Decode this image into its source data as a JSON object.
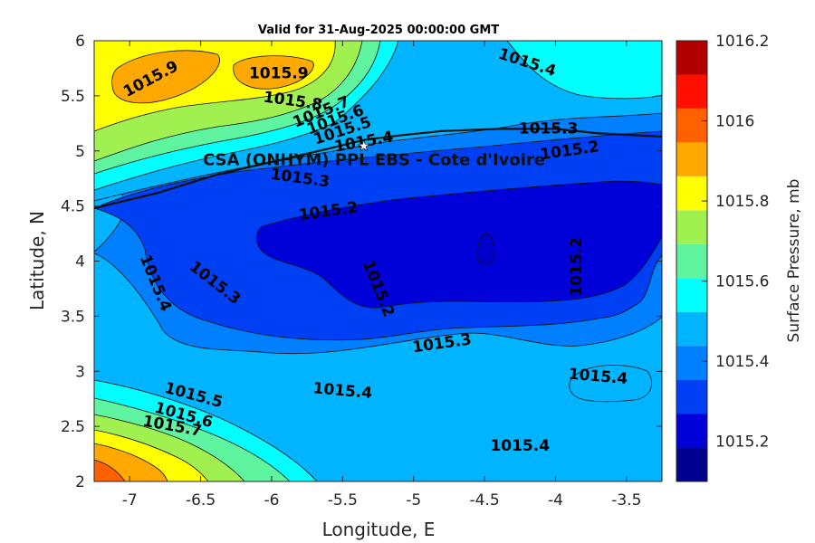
{
  "title": "Valid for 31-Aug-2025 00:00:00 GMT",
  "xlabel": "Longitude, E",
  "ylabel": "Latitude, N",
  "site_label": "CSA (ONHYM) PPL EBS  - Cote d'Ivoire",
  "colorbar": {
    "label": "Surface Pressure, mb",
    "min": 1015.1,
    "max": 1016.2,
    "step": 0.1,
    "tick_labels": [
      "1016.2",
      "1016",
      "1015.8",
      "1015.6",
      "1015.4",
      "1015.2"
    ],
    "colors": [
      "#00008f",
      "#0000d9",
      "#0040f5",
      "#0080ff",
      "#00b4ff",
      "#00ffff",
      "#5ff5a0",
      "#a0f050",
      "#ffff00",
      "#ffa800",
      "#ff6000",
      "#ff1000",
      "#b00000"
    ]
  },
  "chart_data": {
    "type": "contour",
    "x_ticks": [
      "-7",
      "-6.5",
      "-6",
      "-5.5",
      "-5",
      "-4.5",
      "-4",
      "-3.5"
    ],
    "y_ticks": [
      "6",
      "5.5",
      "5",
      "4.5",
      "4",
      "3.5",
      "3",
      "2.5",
      "2"
    ],
    "xlim": [
      -7.25,
      -3.25
    ],
    "ylim": [
      2,
      6
    ],
    "contour_labels": [
      {
        "text": "1015.9",
        "lon": -6.85,
        "lat": 5.65
      },
      {
        "text": "1015.9",
        "lon": -5.95,
        "lat": 5.7
      },
      {
        "text": "1015.8",
        "lon": -5.85,
        "lat": 5.45
      },
      {
        "text": "1015.7",
        "lon": -5.65,
        "lat": 5.35
      },
      {
        "text": "1015.6",
        "lon": -5.55,
        "lat": 5.28
      },
      {
        "text": "1015.5",
        "lon": -5.5,
        "lat": 5.18
      },
      {
        "text": "1015.4",
        "lon": -5.35,
        "lat": 5.08
      },
      {
        "text": "1015.3",
        "lon": -4.05,
        "lat": 5.2
      },
      {
        "text": "1015.2",
        "lon": -3.9,
        "lat": 5.0
      },
      {
        "text": "1015.4",
        "lon": -4.2,
        "lat": 5.8
      },
      {
        "text": "1015.3",
        "lon": -5.8,
        "lat": 4.75
      },
      {
        "text": "1015.2",
        "lon": -5.6,
        "lat": 4.45
      },
      {
        "text": "1015.4",
        "lon": -6.82,
        "lat": 3.8
      },
      {
        "text": "1015.3",
        "lon": -6.4,
        "lat": 3.8
      },
      {
        "text": "1015.2",
        "lon": -5.25,
        "lat": 3.75
      },
      {
        "text": "1015.2",
        "lon": -3.85,
        "lat": 3.95
      },
      {
        "text": "1015.3",
        "lon": -4.8,
        "lat": 3.25
      },
      {
        "text": "1015.4",
        "lon": -5.5,
        "lat": 2.82
      },
      {
        "text": "1015.4",
        "lon": -3.7,
        "lat": 2.95
      },
      {
        "text": "1015.4",
        "lon": -4.25,
        "lat": 2.32
      },
      {
        "text": "1015.5",
        "lon": -6.55,
        "lat": 2.78
      },
      {
        "text": "1015.6",
        "lon": -6.62,
        "lat": 2.6
      },
      {
        "text": "1015.7",
        "lon": -6.7,
        "lat": 2.5
      }
    ],
    "site": {
      "lon": -5.35,
      "lat": 5.05
    },
    "coastline": [
      [
        -7.25,
        4.48
      ],
      [
        -6.8,
        4.62
      ],
      [
        -6.4,
        4.78
      ],
      [
        -6.0,
        4.9
      ],
      [
        -5.6,
        5.02
      ],
      [
        -5.35,
        5.1
      ],
      [
        -5.1,
        5.14
      ],
      [
        -4.8,
        5.18
      ],
      [
        -4.4,
        5.2
      ],
      [
        -4.0,
        5.2
      ],
      [
        -3.7,
        5.16
      ],
      [
        -3.25,
        5.13
      ]
    ]
  }
}
